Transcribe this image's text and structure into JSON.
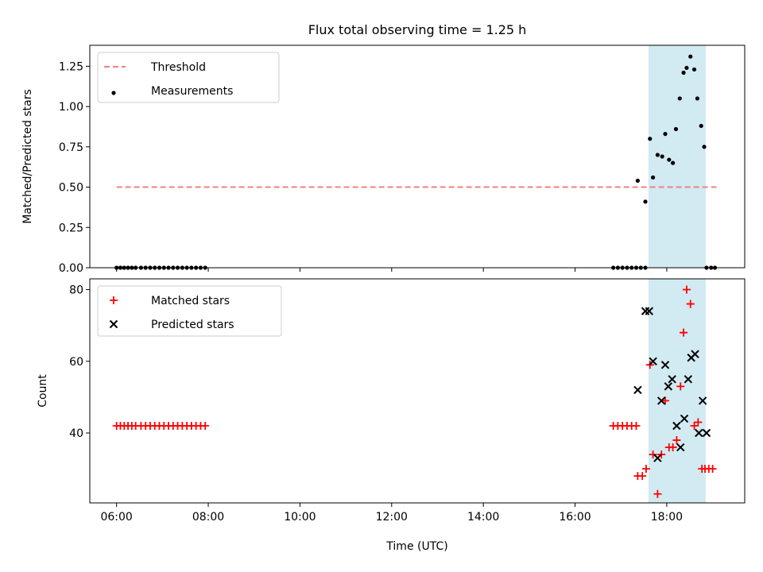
{
  "title": "Flux total observing time = 1.25 h",
  "highlight_color": "#add8e6",
  "chart_data": [
    {
      "type": "scatter",
      "panel": "top",
      "ylabel": "Matched/Predicted stars",
      "ylim": [
        0,
        1.38
      ],
      "yticks": [
        "0.00",
        "0.25",
        "0.50",
        "0.75",
        "1.00",
        "1.25"
      ],
      "xlim": [
        "05:25",
        "19:42"
      ],
      "highlight_span": [
        "17:36",
        "18:51"
      ],
      "legend": {
        "position": "top-left",
        "entries": [
          "Threshold",
          "Measurements"
        ]
      },
      "series": [
        {
          "name": "Threshold",
          "kind": "dashed-line",
          "color": "#f08080",
          "x": [
            "06:00",
            "19:05"
          ],
          "y": [
            0.5,
            0.5
          ]
        },
        {
          "name": "Measurements",
          "kind": "dot",
          "color": "#000000",
          "x": [
            "06:00",
            "06:05",
            "06:10",
            "06:15",
            "06:20",
            "06:25",
            "06:32",
            "06:38",
            "06:44",
            "06:50",
            "06:56",
            "07:02",
            "07:08",
            "07:14",
            "07:20",
            "07:26",
            "07:32",
            "07:38",
            "07:44",
            "07:50",
            "07:56",
            "16:50",
            "16:56",
            "17:02",
            "17:08",
            "17:14",
            "17:20",
            "17:26",
            "17:32",
            "17:22",
            "17:32",
            "17:38",
            "17:42",
            "17:48",
            "17:54",
            "17:58",
            "18:03",
            "18:08",
            "18:12",
            "18:17",
            "18:22",
            "18:26",
            "18:31",
            "18:36",
            "18:40",
            "18:45",
            "18:49",
            "18:52",
            "18:58",
            "19:03"
          ],
          "y": [
            0,
            0,
            0,
            0,
            0,
            0,
            0,
            0,
            0,
            0,
            0,
            0,
            0,
            0,
            0,
            0,
            0,
            0,
            0,
            0,
            0,
            0,
            0,
            0,
            0,
            0,
            0,
            0,
            0,
            0.54,
            0.41,
            0.8,
            0.56,
            0.7,
            0.69,
            0.83,
            0.67,
            0.65,
            0.86,
            1.05,
            1.21,
            1.24,
            1.31,
            1.23,
            1.05,
            0.88,
            0.75,
            0,
            0,
            0
          ]
        }
      ]
    },
    {
      "type": "scatter",
      "panel": "bottom",
      "xlabel": "Time (UTC)",
      "ylabel": "Count",
      "ylim": [
        20.5,
        83
      ],
      "yticks": [
        "40",
        "60",
        "80"
      ],
      "xlim": [
        "05:25",
        "19:42"
      ],
      "xticks": [
        "06:00",
        "08:00",
        "10:00",
        "12:00",
        "14:00",
        "16:00",
        "18:00"
      ],
      "highlight_span": [
        "17:36",
        "18:51"
      ],
      "legend": {
        "position": "top-left",
        "entries": [
          "Matched stars",
          "Predicted stars"
        ]
      },
      "series": [
        {
          "name": "Matched stars",
          "kind": "plus",
          "color": "#ff0000",
          "x": [
            "06:00",
            "06:05",
            "06:10",
            "06:15",
            "06:20",
            "06:25",
            "06:32",
            "06:38",
            "06:44",
            "06:50",
            "06:56",
            "07:02",
            "07:08",
            "07:14",
            "07:20",
            "07:26",
            "07:32",
            "07:38",
            "07:44",
            "07:50",
            "07:56",
            "16:50",
            "16:56",
            "17:02",
            "17:08",
            "17:14",
            "17:20",
            "17:22",
            "17:28",
            "17:33",
            "17:38",
            "17:42",
            "17:48",
            "17:53",
            "17:58",
            "18:03",
            "18:08",
            "18:13",
            "18:18",
            "18:22",
            "18:26",
            "18:31",
            "18:36",
            "18:41",
            "18:46",
            "18:50",
            "18:55",
            "19:00"
          ],
          "y": [
            42,
            42,
            42,
            42,
            42,
            42,
            42,
            42,
            42,
            42,
            42,
            42,
            42,
            42,
            42,
            42,
            42,
            42,
            42,
            42,
            42,
            42,
            42,
            42,
            42,
            42,
            42,
            28,
            28,
            30,
            59,
            34,
            23,
            34,
            49,
            36,
            36,
            38,
            53,
            68,
            80,
            76,
            42,
            43,
            30,
            30,
            30,
            30
          ]
        },
        {
          "name": "Predicted stars",
          "kind": "cross",
          "color": "#000000",
          "x": [
            "17:22",
            "17:32",
            "17:37",
            "17:42",
            "17:48",
            "17:53",
            "17:58",
            "18:02",
            "18:07",
            "18:13",
            "18:18",
            "18:23",
            "18:28",
            "18:32",
            "18:37",
            "18:42",
            "18:47",
            "18:52"
          ],
          "y": [
            52,
            74,
            74,
            60,
            33,
            49,
            59,
            53,
            55,
            42,
            36,
            44,
            55,
            61,
            62,
            40,
            49,
            40
          ]
        }
      ]
    }
  ]
}
